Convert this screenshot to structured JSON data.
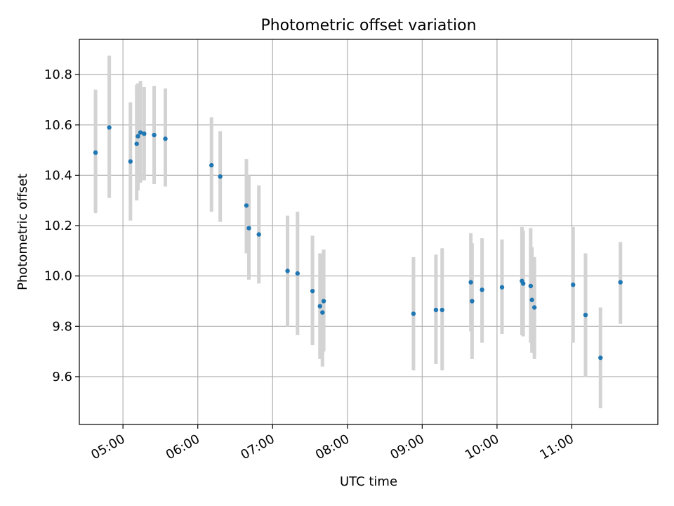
{
  "chart_data": {
    "type": "scatter",
    "title": "Photometric offset variation",
    "xlabel": "UTC time",
    "ylabel": "Photometric offset",
    "xlim": [
      "04:25",
      "12:09"
    ],
    "ylim": [
      9.41,
      10.94
    ],
    "xticks": [
      "05:00",
      "06:00",
      "07:00",
      "08:00",
      "09:00",
      "10:00",
      "11:00"
    ],
    "yticks": [
      9.6,
      9.8,
      10.0,
      10.2,
      10.4,
      10.6,
      10.8
    ],
    "ytick_labels": [
      "9.6",
      "9.8",
      "10.0",
      "10.2",
      "10.4",
      "10.6",
      "10.8"
    ],
    "grid": true,
    "point_color": "#1f77b4",
    "errorbar_color": "#d3d3d3",
    "points": [
      {
        "t": "04:38",
        "y": 10.49,
        "lo": 10.25,
        "hi": 10.74
      },
      {
        "t": "04:49",
        "y": 10.59,
        "lo": 10.31,
        "hi": 10.875
      },
      {
        "t": "05:06",
        "y": 10.455,
        "lo": 10.22,
        "hi": 10.69
      },
      {
        "t": "05:11",
        "y": 10.525,
        "lo": 10.3,
        "hi": 10.76
      },
      {
        "t": "05:12",
        "y": 10.555,
        "lo": 10.34,
        "hi": 10.765
      },
      {
        "t": "05:14",
        "y": 10.57,
        "lo": 10.37,
        "hi": 10.775
      },
      {
        "t": "05:17",
        "y": 10.565,
        "lo": 10.38,
        "hi": 10.75
      },
      {
        "t": "05:25",
        "y": 10.56,
        "lo": 10.365,
        "hi": 10.755
      },
      {
        "t": "05:34",
        "y": 10.545,
        "lo": 10.355,
        "hi": 10.745
      },
      {
        "t": "06:11",
        "y": 10.44,
        "lo": 10.255,
        "hi": 10.63
      },
      {
        "t": "06:18",
        "y": 10.395,
        "lo": 10.215,
        "hi": 10.575
      },
      {
        "t": "06:39",
        "y": 10.28,
        "lo": 10.09,
        "hi": 10.465
      },
      {
        "t": "06:41",
        "y": 10.19,
        "lo": 9.985,
        "hi": 10.4
      },
      {
        "t": "06:49",
        "y": 10.165,
        "lo": 9.97,
        "hi": 10.36
      },
      {
        "t": "07:12",
        "y": 10.02,
        "lo": 9.8,
        "hi": 10.24
      },
      {
        "t": "07:20",
        "y": 10.01,
        "lo": 9.765,
        "hi": 10.255
      },
      {
        "t": "07:32",
        "y": 9.94,
        "lo": 9.725,
        "hi": 10.16
      },
      {
        "t": "07:38",
        "y": 9.88,
        "lo": 9.67,
        "hi": 10.09
      },
      {
        "t": "07:40",
        "y": 9.855,
        "lo": 9.64,
        "hi": 10.085
      },
      {
        "t": "07:41",
        "y": 9.9,
        "lo": 9.7,
        "hi": 10.105
      },
      {
        "t": "08:53",
        "y": 9.85,
        "lo": 9.625,
        "hi": 10.075
      },
      {
        "t": "09:11",
        "y": 9.865,
        "lo": 9.65,
        "hi": 10.085
      },
      {
        "t": "09:16",
        "y": 9.865,
        "lo": 9.625,
        "hi": 10.11
      },
      {
        "t": "09:39",
        "y": 9.975,
        "lo": 9.78,
        "hi": 10.17
      },
      {
        "t": "09:40",
        "y": 9.9,
        "lo": 9.67,
        "hi": 10.13
      },
      {
        "t": "09:48",
        "y": 9.945,
        "lo": 9.735,
        "hi": 10.15
      },
      {
        "t": "10:04",
        "y": 9.955,
        "lo": 9.77,
        "hi": 10.145
      },
      {
        "t": "10:20",
        "y": 9.98,
        "lo": 9.765,
        "hi": 10.195
      },
      {
        "t": "10:21",
        "y": 9.97,
        "lo": 9.76,
        "hi": 10.18
      },
      {
        "t": "10:27",
        "y": 9.96,
        "lo": 9.735,
        "hi": 10.19
      },
      {
        "t": "10:28",
        "y": 9.905,
        "lo": 9.695,
        "hi": 10.115
      },
      {
        "t": "10:30",
        "y": 9.875,
        "lo": 9.67,
        "hi": 10.075
      },
      {
        "t": "11:01",
        "y": 9.965,
        "lo": 9.735,
        "hi": 10.195
      },
      {
        "t": "11:11",
        "y": 9.845,
        "lo": 9.6,
        "hi": 10.09
      },
      {
        "t": "11:23",
        "y": 9.675,
        "lo": 9.475,
        "hi": 9.875
      },
      {
        "t": "11:39",
        "y": 9.975,
        "lo": 9.81,
        "hi": 10.135
      }
    ]
  }
}
